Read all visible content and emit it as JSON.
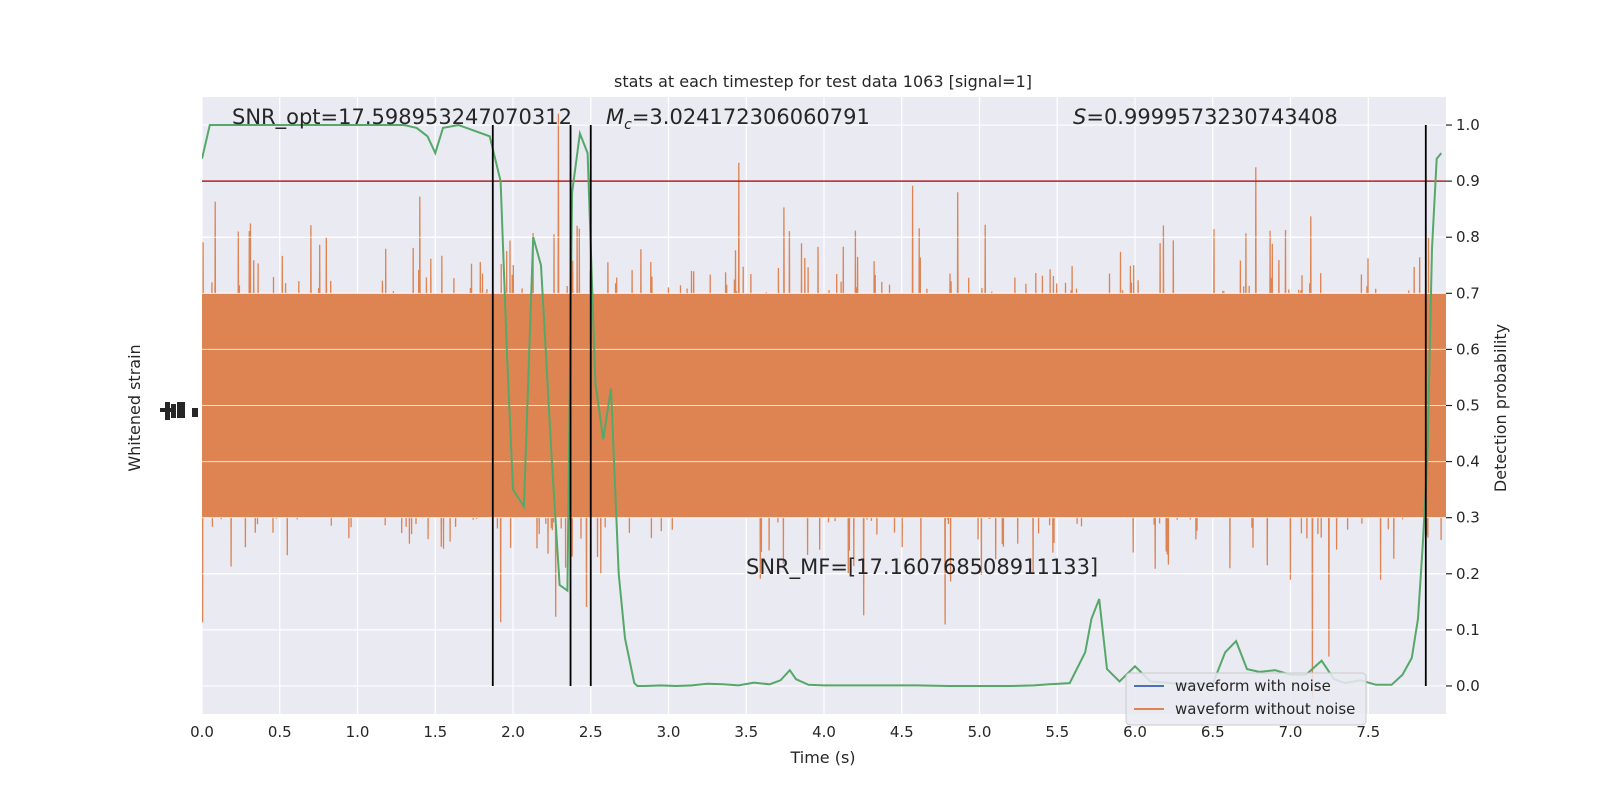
{
  "chart_data": {
    "type": "line",
    "title": "stats at each timestep for test data 1063 [signal=1]",
    "xlabel": "Time (s)",
    "ylabel_left": "Whitened strain",
    "ylabel_right": "Detection probability",
    "xlim": [
      0.0,
      8.0
    ],
    "ylim_right": [
      -0.05,
      1.05
    ],
    "x_ticks": [
      "0.0",
      "0.5",
      "1.0",
      "1.5",
      "2.0",
      "2.5",
      "3.0",
      "3.5",
      "4.0",
      "4.5",
      "5.0",
      "5.5",
      "6.0",
      "6.5",
      "7.0",
      "7.5"
    ],
    "y_right_ticks": [
      "0.0",
      "0.1",
      "0.2",
      "0.3",
      "0.4",
      "0.5",
      "0.6",
      "0.7",
      "0.8",
      "0.9",
      "1.0"
    ],
    "grid": true,
    "legend_position": "lower-right",
    "colors": {
      "background": "#eaeaf2",
      "grid": "#ffffff",
      "noise_waveform": "#4c72b0",
      "clean_waveform": "#dd8452",
      "probability": "#55a868",
      "threshold": "#b22222",
      "event_line": "#000000"
    },
    "annotations": {
      "snr_opt": "SNR_opt=17.598953247070312",
      "mc_symbol": "M",
      "mc_sub": "c",
      "mc_value": "=3.024172306060791",
      "s_symbol": "S",
      "s_value": "=0.9999573230743408",
      "snr_mf": "SNR_MF=[17.160768508911133]"
    },
    "threshold": 0.9,
    "event_lines_x": [
      1.87,
      2.37,
      2.5,
      7.87
    ],
    "series": [
      {
        "name": "waveform with noise",
        "role": "noise"
      },
      {
        "name": "waveform without noise",
        "role": "clean",
        "center": 0.5,
        "amplitude_range": [
          -0.5,
          0.5
        ]
      },
      {
        "role": "probability",
        "x": [
          0.0,
          0.05,
          0.1,
          0.2,
          0.3,
          0.4,
          0.5,
          0.6,
          0.7,
          0.8,
          0.9,
          1.0,
          1.1,
          1.2,
          1.3,
          1.38,
          1.45,
          1.5,
          1.55,
          1.65,
          1.75,
          1.85,
          1.92,
          1.96,
          2.0,
          2.07,
          2.13,
          2.18,
          2.25,
          2.3,
          2.35,
          2.38,
          2.43,
          2.48,
          2.53,
          2.58,
          2.63,
          2.68,
          2.72,
          2.78,
          2.8,
          2.85,
          2.95,
          3.05,
          3.15,
          3.25,
          3.35,
          3.45,
          3.55,
          3.65,
          3.72,
          3.78,
          3.82,
          3.9,
          4.0,
          4.2,
          4.4,
          4.6,
          4.8,
          5.0,
          5.2,
          5.35,
          5.45,
          5.58,
          5.68,
          5.72,
          5.77,
          5.82,
          5.9,
          6.0,
          6.1,
          6.2,
          6.3,
          6.4,
          6.5,
          6.58,
          6.65,
          6.72,
          6.8,
          6.9,
          7.0,
          7.1,
          7.2,
          7.28,
          7.35,
          7.45,
          7.55,
          7.65,
          7.72,
          7.78,
          7.82,
          7.85,
          7.88,
          7.91,
          7.94,
          7.97
        ],
        "y": [
          0.94,
          1.0,
          1.0,
          1.0,
          1.0,
          1.0,
          1.0,
          1.0,
          1.0,
          1.0,
          1.0,
          1.0,
          1.0,
          1.0,
          1.0,
          0.995,
          0.98,
          0.95,
          0.995,
          1.0,
          0.99,
          0.98,
          0.9,
          0.6,
          0.35,
          0.32,
          0.8,
          0.75,
          0.4,
          0.18,
          0.17,
          0.88,
          0.985,
          0.95,
          0.54,
          0.44,
          0.53,
          0.2,
          0.085,
          0.005,
          0.0,
          0.0,
          0.001,
          0.0,
          0.001,
          0.004,
          0.003,
          0.001,
          0.006,
          0.003,
          0.01,
          0.028,
          0.012,
          0.002,
          0.001,
          0.001,
          0.001,
          0.001,
          0.0,
          0.0,
          0.0,
          0.001,
          0.003,
          0.005,
          0.06,
          0.12,
          0.155,
          0.03,
          0.008,
          0.035,
          0.008,
          0.006,
          0.003,
          0.004,
          0.004,
          0.06,
          0.08,
          0.03,
          0.025,
          0.028,
          0.02,
          0.02,
          0.045,
          0.012,
          0.005,
          0.01,
          0.002,
          0.002,
          0.02,
          0.05,
          0.12,
          0.25,
          0.4,
          0.78,
          0.94,
          0.95
        ]
      }
    ]
  }
}
